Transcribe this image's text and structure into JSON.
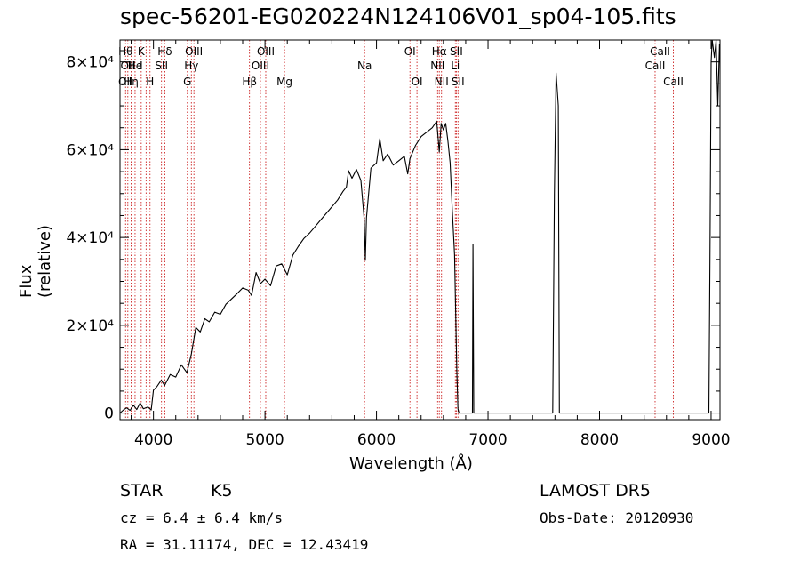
{
  "title": "spec-56201-EG020224N124106V01_sp04-105.fits",
  "chart_data": {
    "type": "line",
    "title": "spec-56201-EG020224N124106V01_sp04-105.fits",
    "xlabel": "Wavelength (Å)",
    "ylabel": "Flux (relative)",
    "xlim": [
      3700,
      9080
    ],
    "ylim": [
      -1500,
      85000
    ],
    "x_ticks": [
      4000,
      5000,
      6000,
      7000,
      8000,
      9000
    ],
    "y_ticks": [
      {
        "value": 0,
        "label": "0"
      },
      {
        "value": 20000,
        "label": "2×10⁴"
      },
      {
        "value": 40000,
        "label": "4×10⁴"
      },
      {
        "value": 60000,
        "label": "6×10⁴"
      },
      {
        "value": 80000,
        "label": "8×10⁴"
      }
    ],
    "series": [
      {
        "values": [
          [
            3700,
            0
          ],
          [
            3730,
            700
          ],
          [
            3760,
            1200
          ],
          [
            3790,
            600
          ],
          [
            3820,
            1800
          ],
          [
            3850,
            800
          ],
          [
            3880,
            2300
          ],
          [
            3910,
            1000
          ],
          [
            3950,
            1400
          ],
          [
            3980,
            700
          ],
          [
            4000,
            5200
          ],
          [
            4030,
            6000
          ],
          [
            4070,
            7500
          ],
          [
            4100,
            6300
          ],
          [
            4150,
            8800
          ],
          [
            4200,
            8200
          ],
          [
            4250,
            11000
          ],
          [
            4300,
            9200
          ],
          [
            4340,
            13500
          ],
          [
            4380,
            19500
          ],
          [
            4420,
            18500
          ],
          [
            4460,
            21500
          ],
          [
            4500,
            20800
          ],
          [
            4550,
            23000
          ],
          [
            4600,
            22500
          ],
          [
            4650,
            24800
          ],
          [
            4700,
            26000
          ],
          [
            4750,
            27200
          ],
          [
            4800,
            28500
          ],
          [
            4850,
            28000
          ],
          [
            4880,
            26800
          ],
          [
            4920,
            32000
          ],
          [
            4960,
            29500
          ],
          [
            5000,
            30500
          ],
          [
            5050,
            29000
          ],
          [
            5100,
            33500
          ],
          [
            5150,
            34000
          ],
          [
            5200,
            31500
          ],
          [
            5250,
            36000
          ],
          [
            5300,
            38000
          ],
          [
            5350,
            39800
          ],
          [
            5400,
            41000
          ],
          [
            5450,
            42500
          ],
          [
            5500,
            44000
          ],
          [
            5550,
            45500
          ],
          [
            5600,
            47000
          ],
          [
            5650,
            48500
          ],
          [
            5700,
            50500
          ],
          [
            5730,
            51500
          ],
          [
            5750,
            55200
          ],
          [
            5780,
            53500
          ],
          [
            5820,
            55500
          ],
          [
            5860,
            53000
          ],
          [
            5890,
            44000
          ],
          [
            5900,
            34800
          ],
          [
            5910,
            44500
          ],
          [
            5950,
            55800
          ],
          [
            6000,
            57000
          ],
          [
            6030,
            62500
          ],
          [
            6060,
            57500
          ],
          [
            6100,
            59000
          ],
          [
            6150,
            56500
          ],
          [
            6200,
            57500
          ],
          [
            6250,
            58500
          ],
          [
            6280,
            54500
          ],
          [
            6300,
            58000
          ],
          [
            6350,
            61000
          ],
          [
            6400,
            63000
          ],
          [
            6450,
            64000
          ],
          [
            6500,
            65000
          ],
          [
            6540,
            66500
          ],
          [
            6563,
            59500
          ],
          [
            6580,
            66000
          ],
          [
            6600,
            64500
          ],
          [
            6620,
            66000
          ],
          [
            6640,
            62000
          ],
          [
            6660,
            57000
          ],
          [
            6680,
            46000
          ],
          [
            6700,
            36000
          ],
          [
            6720,
            10000
          ],
          [
            6730,
            1000
          ],
          [
            6740,
            0
          ],
          [
            6860,
            0
          ],
          [
            6865,
            38500
          ],
          [
            6872,
            0
          ],
          [
            7580,
            0
          ],
          [
            7595,
            50000
          ],
          [
            7610,
            77500
          ],
          [
            7630,
            70000
          ],
          [
            7640,
            0
          ],
          [
            8980,
            0
          ],
          [
            8990,
            35000
          ],
          [
            9000,
            80000
          ],
          [
            9010,
            85000
          ],
          [
            9030,
            81000
          ],
          [
            9045,
            85000
          ],
          [
            9060,
            70000
          ],
          [
            9075,
            84000
          ]
        ]
      }
    ],
    "lines": [
      {
        "x": 3750,
        "labels": [
          {
            "text": "Hθ",
            "row": 0
          },
          {
            "text": "OII",
            "row": 2
          }
        ]
      },
      {
        "x": 3770,
        "labels": [
          {
            "text": "OII",
            "row": 1
          }
        ]
      },
      {
        "x": 3800,
        "labels": [
          {
            "text": "Hη",
            "row": 2
          }
        ]
      },
      {
        "x": 3835,
        "labels": [
          {
            "text": "He",
            "row": 1
          }
        ]
      },
      {
        "x": 3890,
        "labels": [
          {
            "text": "K",
            "row": 0
          },
          {
            "text": "I",
            "row": 1
          }
        ]
      },
      {
        "x": 3934,
        "labels": []
      },
      {
        "x": 3969,
        "labels": [
          {
            "text": "H",
            "row": 2
          }
        ]
      },
      {
        "x": 4072,
        "labels": [
          {
            "text": "SII",
            "row": 1
          }
        ]
      },
      {
        "x": 4102,
        "labels": [
          {
            "text": "Hδ",
            "row": 0
          }
        ]
      },
      {
        "x": 4304,
        "labels": [
          {
            "text": "G",
            "row": 2
          }
        ]
      },
      {
        "x": 4340,
        "labels": [
          {
            "text": "Hγ",
            "row": 1
          }
        ]
      },
      {
        "x": 4363,
        "labels": [
          {
            "text": "OIII",
            "row": 0
          }
        ]
      },
      {
        "x": 4861,
        "labels": [
          {
            "text": "Hβ",
            "row": 2
          }
        ]
      },
      {
        "x": 4959,
        "labels": [
          {
            "text": "OIII",
            "row": 1
          }
        ]
      },
      {
        "x": 5007,
        "labels": [
          {
            "text": "OIII",
            "row": 0
          }
        ]
      },
      {
        "x": 5175,
        "labels": [
          {
            "text": "Mg",
            "row": 2
          }
        ]
      },
      {
        "x": 5893,
        "labels": [
          {
            "text": "Na",
            "row": 1
          }
        ]
      },
      {
        "x": 6300,
        "labels": [
          {
            "text": "OI",
            "row": 0
          }
        ]
      },
      {
        "x": 6363,
        "labels": [
          {
            "text": "OI",
            "row": 2
          }
        ]
      },
      {
        "x": 6548,
        "labels": [
          {
            "text": "NII",
            "row": 1
          }
        ]
      },
      {
        "x": 6563,
        "labels": [
          {
            "text": "Hα",
            "row": 0
          }
        ]
      },
      {
        "x": 6583,
        "labels": [
          {
            "text": "NII",
            "row": 2
          }
        ]
      },
      {
        "x": 6707,
        "labels": [
          {
            "text": "Li",
            "row": 1
          }
        ]
      },
      {
        "x": 6716,
        "labels": [
          {
            "text": "SII",
            "row": 0
          }
        ]
      },
      {
        "x": 6731,
        "labels": [
          {
            "text": "SII",
            "row": 2
          }
        ]
      },
      {
        "x": 8498,
        "labels": [
          {
            "text": "CaII",
            "row": 1
          }
        ]
      },
      {
        "x": 8542,
        "labels": [
          {
            "text": "CaII",
            "row": 0
          }
        ]
      },
      {
        "x": 8662,
        "labels": [
          {
            "text": "CaII",
            "row": 2
          }
        ]
      }
    ],
    "grid": false,
    "colors": {
      "series": "#000000",
      "lines": "#cc2222",
      "axis": "#000000"
    }
  },
  "footer": {
    "object_class": "STAR",
    "subclass": "K5",
    "survey": "LAMOST DR5",
    "redshift": "cz = 6.4 ± 6.4 km/s",
    "obs_date": "Obs-Date: 20120930",
    "coords": "RA =  31.11174, DEC =  12.43419"
  }
}
